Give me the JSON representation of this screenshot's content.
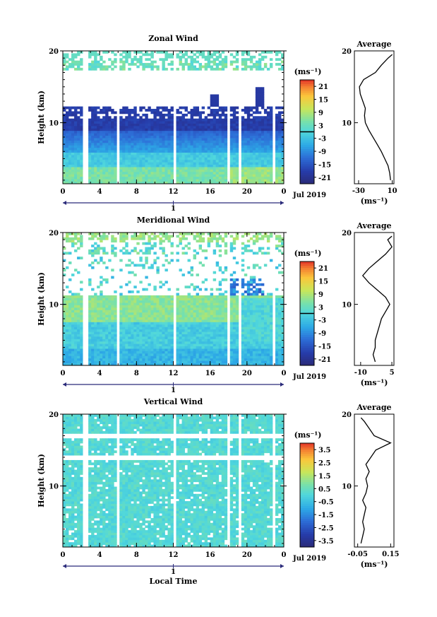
{
  "figure": {
    "x_axis_label": "Local Time",
    "date_label": "Jul 2019",
    "day_marker": "1",
    "x_ticks": [
      "0",
      "4",
      "8",
      "12",
      "16",
      "20",
      "0"
    ],
    "y_label": "Height (km)",
    "y_ticks": [
      "20",
      "10"
    ],
    "unit_label": "(ms⁻¹)",
    "average_title": "Average"
  },
  "chart_data": [
    {
      "type": "heatmap",
      "title": "Zonal Wind",
      "xlabel": "",
      "ylabel": "Height (km)",
      "xlim": [
        0,
        24
      ],
      "ylim": [
        1.5,
        20
      ],
      "x_tick_labels": [
        "0",
        "4",
        "8",
        "12",
        "16",
        "20",
        "0"
      ],
      "y_tick_labels": [
        "20",
        "10"
      ],
      "colorbar": {
        "label": "(ms⁻¹)",
        "ticks": [
          "21",
          "15",
          "9",
          "3",
          "-3",
          "-9",
          "-15",
          "-21"
        ],
        "range": [
          -24,
          24
        ],
        "zero_line": true
      },
      "average_profile": {
        "title": "Average",
        "xlabel": "(ms⁻¹)",
        "x_tick_labels": [
          "-30",
          "10"
        ],
        "xlim": [
          -35,
          12
        ],
        "heights": [
          2,
          3,
          4,
          5,
          6,
          7,
          8,
          9,
          10,
          11,
          12,
          13,
          14,
          15,
          16,
          17,
          18,
          19,
          19.5
        ],
        "values": [
          8,
          7,
          5,
          1,
          -3,
          -8,
          -13,
          -18,
          -22,
          -23,
          -22,
          -25,
          -28,
          -29,
          -24,
          -10,
          -3,
          5,
          10
        ]
      },
      "no_data_time_gaps": [
        [
          2.2,
          2.7
        ],
        [
          5.8,
          6.3
        ],
        [
          12.0,
          12.4
        ],
        [
          17.8,
          18.2
        ],
        [
          19.2,
          19.4
        ],
        [
          22.8,
          23.1
        ]
      ]
    },
    {
      "type": "heatmap",
      "title": "Meridional Wind",
      "xlabel": "",
      "ylabel": "Height (km)",
      "xlim": [
        0,
        24
      ],
      "ylim": [
        1.5,
        20
      ],
      "x_tick_labels": [
        "0",
        "4",
        "8",
        "12",
        "16",
        "20",
        "0"
      ],
      "y_tick_labels": [
        "20",
        "10"
      ],
      "colorbar": {
        "label": "(ms⁻¹)",
        "ticks": [
          "21",
          "15",
          "9",
          "3",
          "-3",
          "-9",
          "-15",
          "-21"
        ],
        "range": [
          -24,
          24
        ],
        "zero_line": true
      },
      "average_profile": {
        "title": "Average",
        "xlabel": "(ms⁻¹)",
        "x_tick_labels": [
          "-10",
          "5"
        ],
        "xlim": [
          -13,
          6
        ],
        "heights": [
          2,
          3,
          4,
          5,
          6,
          7,
          8,
          9,
          10,
          11,
          12,
          13,
          14,
          15,
          16,
          17,
          18,
          19,
          19.5
        ],
        "values": [
          -3,
          -4,
          -3,
          -3,
          -2,
          -1,
          0,
          2,
          4,
          2,
          -2,
          -6,
          -9,
          -6,
          -2,
          2,
          5,
          3,
          5
        ]
      },
      "no_data_time_gaps": [
        [
          2.2,
          2.7
        ],
        [
          5.8,
          6.3
        ],
        [
          12.0,
          12.4
        ],
        [
          17.8,
          18.2
        ],
        [
          19.2,
          19.4
        ],
        [
          22.8,
          23.1
        ]
      ]
    },
    {
      "type": "heatmap",
      "title": "Vertical Wind",
      "xlabel": "Local Time",
      "ylabel": "Height (km)",
      "xlim": [
        0,
        24
      ],
      "ylim": [
        1.5,
        20
      ],
      "x_tick_labels": [
        "0",
        "4",
        "8",
        "12",
        "16",
        "20",
        "0"
      ],
      "y_tick_labels": [
        "20",
        "10"
      ],
      "colorbar": {
        "label": "(ms⁻¹)",
        "ticks": [
          "3.5",
          "2.5",
          "1.5",
          "0.5",
          "-0.5",
          "-1.5",
          "-2.5",
          "-3.5"
        ],
        "range": [
          -4,
          4
        ],
        "zero_line": false
      },
      "average_profile": {
        "title": "Average",
        "xlabel": "(ms⁻¹)",
        "x_tick_labels": [
          "-0.05",
          "0.15"
        ],
        "xlim": [
          -0.07,
          0.17
        ],
        "heights": [
          2,
          3,
          4,
          5,
          6,
          7,
          8,
          9,
          10,
          11,
          12,
          13,
          14,
          15,
          16,
          17,
          18,
          19,
          19.5
        ],
        "values": [
          -0.03,
          -0.02,
          -0.01,
          -0.02,
          -0.01,
          0.0,
          -0.02,
          0.0,
          0.01,
          0.0,
          0.02,
          0.0,
          0.03,
          0.06,
          0.15,
          0.05,
          0.02,
          -0.01,
          -0.03
        ]
      },
      "no_data_time_gaps": [
        [
          2.2,
          2.7
        ],
        [
          5.8,
          6.3
        ],
        [
          12.0,
          12.4
        ],
        [
          17.8,
          18.2
        ],
        [
          19.2,
          19.4
        ],
        [
          22.8,
          23.1
        ]
      ]
    }
  ]
}
